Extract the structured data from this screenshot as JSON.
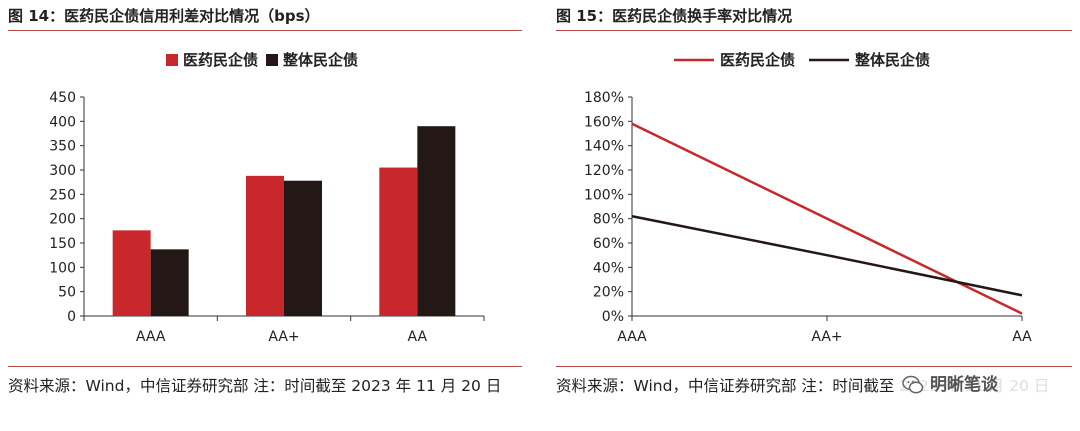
{
  "figures": [
    {
      "title": "图 14：医药民企债信用利差对比情况（bps）",
      "source": "资料来源：Wind，中信证券研究部 注：时间截至 2023 年 11 月 20 日"
    },
    {
      "title": "图 15：医药民企债换手率对比情况",
      "source": "资料来源：Wind，中信证券研究部 注：时间截至 2023 年 11 月 20 日"
    }
  ],
  "watermark": {
    "text": "明晰笔谈",
    "icon": "wechat-icon"
  },
  "chart_data": [
    {
      "type": "bar",
      "title": "图 14：医药民企债信用利差对比情况（bps）",
      "categories": [
        "AAA",
        "AA+",
        "AA"
      ],
      "series": [
        {
          "name": "医药民企债",
          "values": [
            176,
            288,
            305
          ],
          "color": "#c8282b"
        },
        {
          "name": "整体民企债",
          "values": [
            137,
            278,
            390
          ],
          "color": "#231815"
        }
      ],
      "ylim": [
        0,
        450
      ],
      "yticks": [
        0,
        50,
        100,
        150,
        200,
        250,
        300,
        350,
        400,
        450
      ],
      "legend": "top-center",
      "grid": false
    },
    {
      "type": "line",
      "title": "图 15：医药民企债换手率对比情况",
      "categories": [
        "AAA",
        "AA+",
        "AA"
      ],
      "series": [
        {
          "name": "医药民企债",
          "values": [
            158,
            80,
            2
          ],
          "color": "#c8282b"
        },
        {
          "name": "整体民企债",
          "values": [
            82,
            50,
            17
          ],
          "color": "#231815"
        }
      ],
      "ylim": [
        0,
        180
      ],
      "yticks": [
        "0%",
        "20%",
        "40%",
        "60%",
        "80%",
        "100%",
        "120%",
        "140%",
        "160%",
        "180%"
      ],
      "ytick_values": [
        0,
        20,
        40,
        60,
        80,
        100,
        120,
        140,
        160,
        180
      ],
      "legend": "top-center",
      "grid": false
    }
  ]
}
